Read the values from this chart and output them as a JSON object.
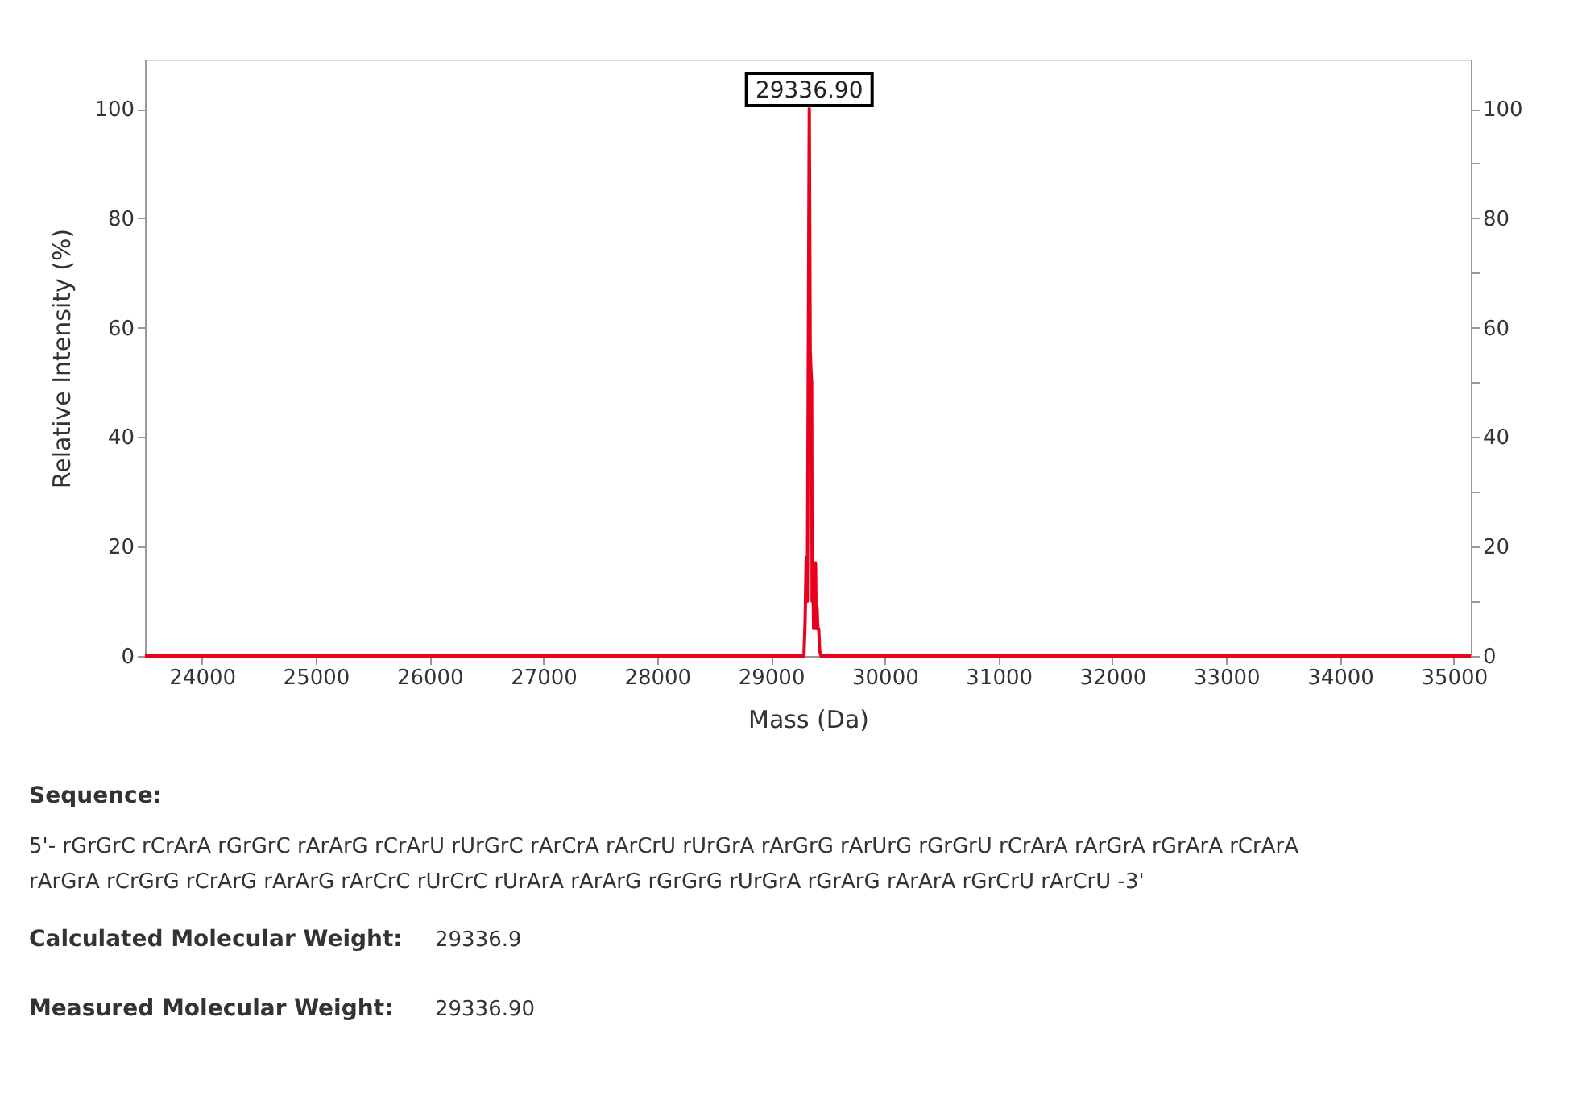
{
  "chart_data": {
    "type": "line",
    "xlabel": "Mass (Da)",
    "ylabel": "Relative Intensity (%)",
    "series": [
      {
        "color": "#e8001c",
        "x": [
          23500,
          29270,
          29290,
          29300,
          29310,
          29320,
          29337,
          29345,
          29352,
          29358,
          29362,
          29368,
          29375,
          29385,
          29392,
          29398,
          29405,
          29412,
          29420,
          29428,
          29440,
          35150
        ],
        "values": [
          0,
          0,
          0,
          6,
          18,
          10,
          100,
          56,
          52,
          50,
          10,
          16,
          5,
          7,
          17,
          5,
          9,
          5,
          5,
          1,
          0,
          0
        ]
      }
    ],
    "xlim": [
      23500,
      35150
    ],
    "xticks": [
      24000,
      25000,
      26000,
      27000,
      28000,
      29000,
      30000,
      31000,
      32000,
      33000,
      34000,
      35000
    ],
    "ylim": [
      0,
      109
    ],
    "yticks": [
      0,
      {
        "value": 10,
        "label": null
      },
      20,
      {
        "value": 30,
        "label": null
      },
      40,
      {
        "value": 50,
        "label": null
      },
      60,
      {
        "value": 70,
        "label": null
      },
      80,
      {
        "value": 90,
        "label": null
      },
      100
    ],
    "y2lim": [
      0,
      109
    ],
    "y2ticks": [
      0,
      {
        "value": 10,
        "label": null
      },
      20,
      {
        "value": 30,
        "label": null
      },
      40,
      {
        "value": 50,
        "label": null
      },
      60,
      {
        "value": 70,
        "label": null
      },
      80,
      {
        "value": 90,
        "label": null
      },
      100
    ],
    "grid": false,
    "legend": false,
    "marker": "none",
    "line_style": "solid",
    "annotations": [
      {
        "text": "29336.90",
        "x": 29337,
        "y": 100
      },
      "Sequence:",
      "5'- rGrGrC rCrArA rGrGrC rArArG rCrArU rUrGrC rArCrA rArCrU rUrGrA rArGrG rArUrG rGrGrU rCrArA rArGrA rGrArA rCrArA",
      "rArGrA rCrGrG rCrArG rArArG rArCrC rUrCrC rUrArA rArArG rGrGrG rUrGrA rGrArG rArArA rGrCrU rArCrU -3'",
      "Calculated Molecular Weight:",
      "29336.9",
      "Measured Molecular Weight:",
      "29336.90"
    ]
  }
}
